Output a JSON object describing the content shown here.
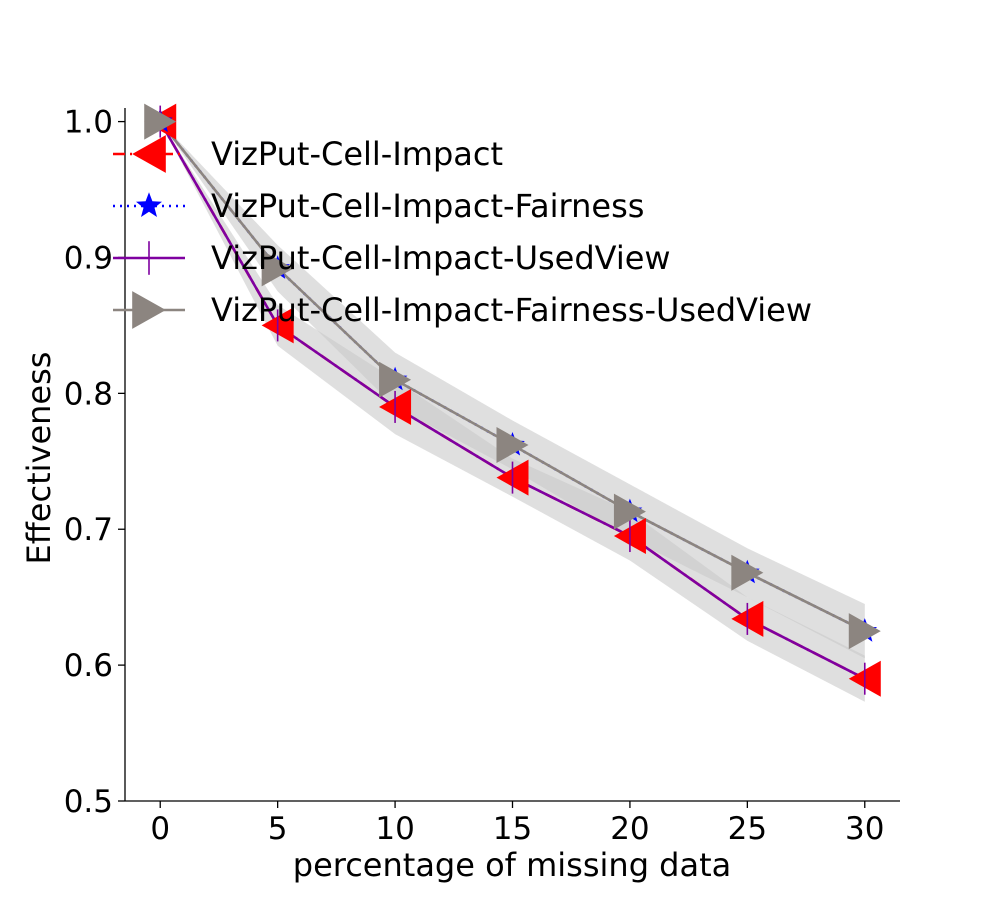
{
  "chart_data": {
    "type": "line",
    "title": "",
    "xlabel": "percentage of missing data",
    "ylabel": "Effectiveness",
    "x": [
      0,
      5,
      10,
      15,
      20,
      25,
      30
    ],
    "xticks": [
      "0",
      "5",
      "10",
      "15",
      "20",
      "25",
      "30"
    ],
    "yticks": [
      "0.5",
      "0.6",
      "0.7",
      "0.8",
      "0.9",
      "1.0"
    ],
    "xlim": [
      -1.5,
      31.5
    ],
    "ylim": [
      0.5,
      1.01
    ],
    "grid": false,
    "legend_position": "top-right",
    "band_color": "#c8c8c8",
    "series": [
      {
        "name": "VizPut-Cell-Impact",
        "values": [
          1.0,
          0.85,
          0.79,
          0.738,
          0.695,
          0.634,
          0.59
        ],
        "lower": [
          1.0,
          0.835,
          0.77,
          0.724,
          0.677,
          0.618,
          0.573
        ],
        "upper": [
          1.0,
          0.865,
          0.81,
          0.752,
          0.713,
          0.65,
          0.607
        ],
        "color": "#ff0000",
        "dash": "dashdot",
        "marker": "triangle-left"
      },
      {
        "name": "VizPut-Cell-Impact-Fairness",
        "values": [
          1.0,
          0.892,
          0.81,
          0.762,
          0.713,
          0.668,
          0.625
        ],
        "lower": [
          1.0,
          0.875,
          0.79,
          0.744,
          0.693,
          0.65,
          0.605
        ],
        "upper": [
          1.0,
          0.909,
          0.83,
          0.78,
          0.733,
          0.686,
          0.645
        ],
        "color": "#0000ff",
        "dash": "dotted",
        "marker": "star"
      },
      {
        "name": "VizPut-Cell-Impact-UsedView",
        "values": [
          1.0,
          0.85,
          0.79,
          0.738,
          0.695,
          0.634,
          0.59
        ],
        "lower": [
          1.0,
          0.835,
          0.77,
          0.724,
          0.677,
          0.618,
          0.573
        ],
        "upper": [
          1.0,
          0.865,
          0.81,
          0.752,
          0.713,
          0.65,
          0.607
        ],
        "color": "#7f00a0",
        "dash": "solid",
        "marker": "vline"
      },
      {
        "name": "VizPut-Cell-Impact-Fairness-UsedView",
        "values": [
          1.0,
          0.892,
          0.81,
          0.762,
          0.713,
          0.668,
          0.625
        ],
        "lower": [
          1.0,
          0.875,
          0.79,
          0.744,
          0.693,
          0.65,
          0.605
        ],
        "upper": [
          1.0,
          0.909,
          0.83,
          0.78,
          0.733,
          0.686,
          0.645
        ],
        "color": "#8c8580",
        "dash": "solid",
        "marker": "triangle-right"
      }
    ]
  }
}
